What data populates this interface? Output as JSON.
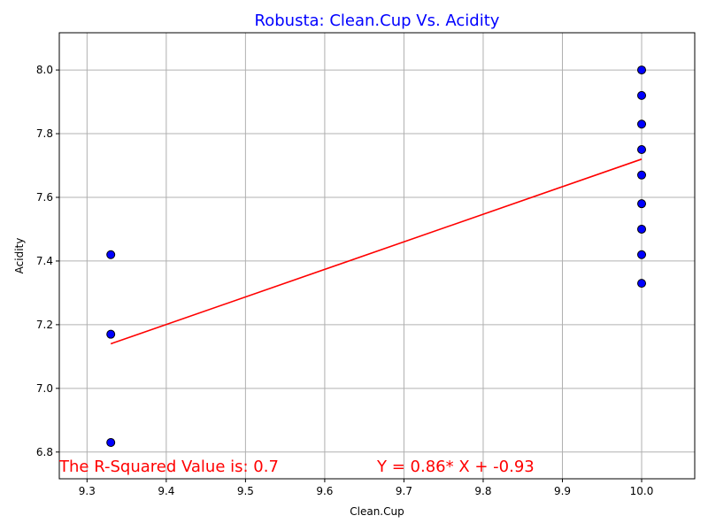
{
  "chart_data": {
    "type": "scatter",
    "title": "Robusta: Clean.Cup Vs. Acidity",
    "title_color": "#0000ff",
    "xlabel": "Clean.Cup",
    "ylabel": "Acidity",
    "xlim": [
      9.265,
      10.067
    ],
    "ylim": [
      6.716,
      8.117
    ],
    "x_ticks": [
      9.3,
      9.4,
      9.5,
      9.6,
      9.7,
      9.8,
      9.9,
      10.0
    ],
    "x_tick_labels": [
      "9.3",
      "9.4",
      "9.5",
      "9.6",
      "9.7",
      "9.8",
      "9.9",
      "10.0"
    ],
    "y_ticks": [
      6.8,
      7.0,
      7.2,
      7.4,
      7.6,
      7.8,
      8.0
    ],
    "y_tick_labels": [
      "6.8",
      "7.0",
      "7.2",
      "7.4",
      "7.6",
      "7.8",
      "8.0"
    ],
    "grid": true,
    "series": [
      {
        "marker_color": "#0000ff",
        "edge_color": "#000000",
        "points": [
          {
            "x": 9.33,
            "y": 7.42
          },
          {
            "x": 9.33,
            "y": 7.17
          },
          {
            "x": 9.33,
            "y": 6.83
          },
          {
            "x": 10.0,
            "y": 8.0
          },
          {
            "x": 10.0,
            "y": 7.92
          },
          {
            "x": 10.0,
            "y": 7.83
          },
          {
            "x": 10.0,
            "y": 7.75
          },
          {
            "x": 10.0,
            "y": 7.67
          },
          {
            "x": 10.0,
            "y": 7.58
          },
          {
            "x": 10.0,
            "y": 7.5
          },
          {
            "x": 10.0,
            "y": 7.42
          },
          {
            "x": 10.0,
            "y": 7.33
          }
        ]
      }
    ],
    "regression": {
      "color": "#ff0000",
      "slope": 0.86,
      "intercept": -0.93,
      "x_start": 9.33,
      "x_end": 10.0,
      "y_start": 7.14,
      "y_end": 7.72
    },
    "annotations": {
      "color": "#ff0000",
      "r_squared": "The R-Squared Value is: 0.7",
      "equation": "Y = 0.86* X + -0.93"
    }
  }
}
